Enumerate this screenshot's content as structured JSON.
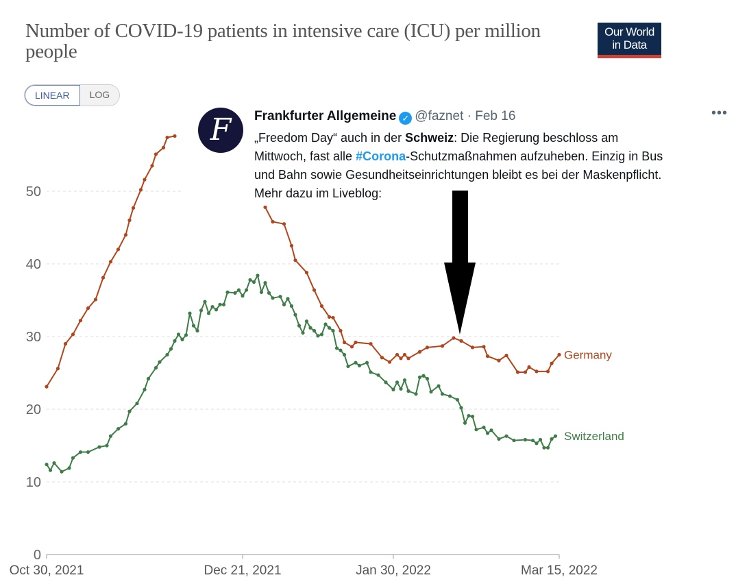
{
  "header": {
    "title": "Number of COVID-19 patients in intensive care (ICU) per million people",
    "logo_text": "Our World in Data",
    "logo_line1": "Our World",
    "logo_line2": "in Data"
  },
  "controls": {
    "linear_label": "LINEAR",
    "log_label": "LOG",
    "selected": "LINEAR"
  },
  "tweet": {
    "avatar_letter": "F",
    "name": "Frankfurter Allgemeine",
    "verified_icon": "verified-badge-icon",
    "handle": "@faznet",
    "separator": "·",
    "date": "Feb 16",
    "more_icon": "ellipsis-icon",
    "more": "•••",
    "lines": [
      [
        {
          "t": "„Freedom Day“ auch in der ",
          "s": "n"
        },
        {
          "t": "Schweiz",
          "s": "b"
        },
        {
          "t": ": Die Regierung beschloss am",
          "s": "n"
        }
      ],
      [
        {
          "t": "Mittwoch, fast alle ",
          "s": "n"
        },
        {
          "t": "#Corona",
          "s": "link"
        },
        {
          "t": "-Schutzmaßnahmen aufzuheben. Einzig in Bus",
          "s": "n"
        }
      ],
      [
        {
          "t": "und Bahn sowie Gesundheitseinrichtungen bleibt es bei der Maskenpflicht.",
          "s": "n"
        }
      ],
      [
        {
          "t": "Mehr dazu im Liveblog:",
          "s": "n"
        }
      ]
    ],
    "annotation": "black-down-arrow pointing at 2022-02-15"
  },
  "chart_data": {
    "type": "line",
    "title": "Number of COVID-19 patients in intensive care (ICU) per million people",
    "xlabel": "",
    "ylabel": "",
    "ylim": [
      0,
      57
    ],
    "xlim": [
      "2021-10-30",
      "2022-03-15"
    ],
    "yticks": [
      0,
      10,
      20,
      30,
      40,
      50
    ],
    "xticks": [
      {
        "date": "2021-10-30",
        "label": "Oct 30, 2021"
      },
      {
        "date": "2021-12-21",
        "label": "Dec 21, 2021"
      },
      {
        "date": "2022-01-30",
        "label": "Jan 30, 2022"
      },
      {
        "date": "2022-03-15",
        "label": "Mar 15, 2022"
      }
    ],
    "grid": "horizontal dashed",
    "legend": "line-end labels",
    "series": [
      {
        "name": "Germany",
        "color": "#b0461c",
        "points": [
          [
            "2021-10-30",
            23.1
          ],
          [
            "2021-11-02",
            25.6
          ],
          [
            "2021-11-04",
            29.0
          ],
          [
            "2021-11-06",
            30.3
          ],
          [
            "2021-11-08",
            32.2
          ],
          [
            "2021-11-10",
            33.9
          ],
          [
            "2021-11-12",
            35.1
          ],
          [
            "2021-11-14",
            38.1
          ],
          [
            "2021-11-16",
            40.3
          ],
          [
            "2021-11-18",
            42.0
          ],
          [
            "2021-11-20",
            44.0
          ],
          [
            "2021-11-21",
            46.0
          ],
          [
            "2021-11-22",
            47.7
          ],
          [
            "2021-11-24",
            50.2
          ],
          [
            "2021-11-25",
            51.6
          ],
          [
            "2021-11-27",
            53.5
          ],
          [
            "2021-11-28",
            55.1
          ],
          [
            "2021-11-30",
            56.0
          ],
          [
            "2021-12-01",
            57.4
          ],
          [
            "2021-12-03",
            57.6
          ],
          null,
          [
            "2021-12-27",
            47.8
          ],
          [
            "2021-12-29",
            45.8
          ],
          [
            "2022-01-01",
            45.5
          ],
          [
            "2022-01-03",
            42.5
          ],
          [
            "2022-01-04",
            40.5
          ],
          [
            "2022-01-07",
            38.8
          ],
          [
            "2022-01-09",
            36.4
          ],
          [
            "2022-01-11",
            34.2
          ],
          [
            "2022-01-13",
            32.7
          ],
          [
            "2022-01-14",
            32.6
          ],
          [
            "2022-01-16",
            30.8
          ],
          [
            "2022-01-17",
            29.2
          ],
          [
            "2022-01-19",
            28.6
          ],
          [
            "2022-01-20",
            29.2
          ],
          [
            "2022-01-24",
            29.0
          ],
          [
            "2022-01-27",
            27.1
          ],
          [
            "2022-01-29",
            26.5
          ],
          [
            "2022-01-31",
            27.5
          ],
          [
            "2022-02-01",
            27.0
          ],
          [
            "2022-02-02",
            27.5
          ],
          [
            "2022-02-03",
            27.0
          ],
          [
            "2022-02-06",
            27.9
          ],
          [
            "2022-02-08",
            28.5
          ],
          [
            "2022-02-12",
            28.7
          ],
          [
            "2022-02-15",
            29.8
          ],
          [
            "2022-02-17",
            29.4
          ],
          [
            "2022-02-20",
            28.5
          ],
          [
            "2022-02-23",
            28.6
          ],
          [
            "2022-02-24",
            27.3
          ],
          [
            "2022-02-27",
            26.7
          ],
          [
            "2022-03-01",
            27.4
          ],
          [
            "2022-03-04",
            25.1
          ],
          [
            "2022-03-06",
            25.1
          ],
          [
            "2022-03-07",
            25.8
          ],
          [
            "2022-03-09",
            25.2
          ],
          [
            "2022-03-12",
            25.2
          ],
          [
            "2022-03-13",
            26.3
          ],
          [
            "2022-03-15",
            27.5
          ]
        ]
      },
      {
        "name": "Switzerland",
        "color": "#3e7d47",
        "points": [
          [
            "2021-10-30",
            12.4
          ],
          [
            "2021-10-31",
            11.6
          ],
          [
            "2021-11-01",
            12.6
          ],
          [
            "2021-11-03",
            11.4
          ],
          [
            "2021-11-05",
            11.9
          ],
          [
            "2021-11-06",
            13.3
          ],
          [
            "2021-11-08",
            14.1
          ],
          [
            "2021-11-10",
            14.1
          ],
          [
            "2021-11-13",
            14.8
          ],
          [
            "2021-11-15",
            15.0
          ],
          [
            "2021-11-16",
            16.3
          ],
          [
            "2021-11-18",
            17.3
          ],
          [
            "2021-11-20",
            18.0
          ],
          [
            "2021-11-21",
            19.7
          ],
          [
            "2021-11-23",
            20.8
          ],
          [
            "2021-11-25",
            22.7
          ],
          [
            "2021-11-26",
            24.2
          ],
          [
            "2021-11-28",
            25.7
          ],
          [
            "2021-11-29",
            26.5
          ],
          [
            "2021-12-01",
            27.5
          ],
          [
            "2021-12-02",
            28.3
          ],
          [
            "2021-12-03",
            29.4
          ],
          [
            "2021-12-04",
            30.3
          ],
          [
            "2021-12-05",
            29.6
          ],
          [
            "2021-12-06",
            30.2
          ],
          [
            "2021-12-07",
            33.2
          ],
          [
            "2021-12-08",
            31.5
          ],
          [
            "2021-12-09",
            30.8
          ],
          [
            "2021-12-10",
            33.6
          ],
          [
            "2021-12-11",
            34.8
          ],
          [
            "2021-12-12",
            33.2
          ],
          [
            "2021-12-13",
            34.1
          ],
          [
            "2021-12-14",
            33.7
          ],
          [
            "2021-12-15",
            34.4
          ],
          [
            "2021-12-16",
            34.4
          ],
          [
            "2021-12-17",
            36.1
          ],
          [
            "2021-12-19",
            36.0
          ],
          [
            "2021-12-20",
            36.4
          ],
          [
            "2021-12-21",
            35.6
          ],
          [
            "2021-12-22",
            36.4
          ],
          [
            "2021-12-23",
            37.8
          ],
          [
            "2021-12-24",
            37.5
          ],
          [
            "2021-12-25",
            38.4
          ],
          [
            "2021-12-26",
            36.1
          ],
          [
            "2021-12-27",
            37.4
          ],
          [
            "2021-12-28",
            36.0
          ],
          [
            "2021-12-29",
            35.3
          ],
          [
            "2021-12-31",
            35.5
          ],
          [
            "2022-01-01",
            34.4
          ],
          [
            "2022-01-02",
            35.2
          ],
          [
            "2022-01-03",
            34.2
          ],
          [
            "2022-01-04",
            33.0
          ],
          [
            "2022-01-05",
            31.5
          ],
          [
            "2022-01-06",
            30.5
          ],
          [
            "2022-01-07",
            32.1
          ],
          [
            "2022-01-08",
            31.2
          ],
          [
            "2022-01-09",
            30.8
          ],
          [
            "2022-01-10",
            30.1
          ],
          [
            "2022-01-11",
            30.3
          ],
          [
            "2022-01-12",
            31.7
          ],
          [
            "2022-01-13",
            31.2
          ],
          [
            "2022-01-14",
            30.8
          ],
          [
            "2022-01-15",
            28.4
          ],
          [
            "2022-01-16",
            28.1
          ],
          [
            "2022-01-17",
            27.5
          ],
          [
            "2022-01-18",
            25.9
          ],
          [
            "2022-01-20",
            26.4
          ],
          [
            "2022-01-21",
            26.0
          ],
          [
            "2022-01-23",
            26.4
          ],
          [
            "2022-01-24",
            25.1
          ],
          [
            "2022-01-26",
            24.7
          ],
          [
            "2022-01-28",
            23.7
          ],
          [
            "2022-01-30",
            22.7
          ],
          [
            "2022-01-31",
            23.7
          ],
          [
            "2022-02-01",
            22.8
          ],
          [
            "2022-02-02",
            24.0
          ],
          [
            "2022-02-03",
            22.5
          ],
          [
            "2022-02-05",
            22.1
          ],
          [
            "2022-02-06",
            24.4
          ],
          [
            "2022-02-07",
            24.6
          ],
          [
            "2022-02-08",
            24.2
          ],
          [
            "2022-02-09",
            22.4
          ],
          [
            "2022-02-11",
            23.2
          ],
          [
            "2022-02-12",
            22.1
          ],
          [
            "2022-02-14",
            21.8
          ],
          [
            "2022-02-16",
            21.3
          ],
          [
            "2022-02-17",
            20.2
          ],
          [
            "2022-02-18",
            18.1
          ],
          [
            "2022-02-19",
            19.1
          ],
          [
            "2022-02-20",
            19.0
          ],
          [
            "2022-02-21",
            17.2
          ],
          [
            "2022-02-23",
            17.5
          ],
          [
            "2022-02-24",
            16.7
          ],
          [
            "2022-02-25",
            17.1
          ],
          [
            "2022-02-27",
            15.9
          ],
          [
            "2022-03-01",
            16.3
          ],
          [
            "2022-03-03",
            15.7
          ],
          [
            "2022-03-06",
            15.8
          ],
          [
            "2022-03-08",
            15.7
          ],
          [
            "2022-03-09",
            15.3
          ],
          [
            "2022-03-10",
            15.8
          ],
          [
            "2022-03-11",
            14.7
          ],
          [
            "2022-03-12",
            14.7
          ],
          [
            "2022-03-13",
            15.9
          ],
          [
            "2022-03-14",
            16.3
          ]
        ]
      }
    ]
  }
}
